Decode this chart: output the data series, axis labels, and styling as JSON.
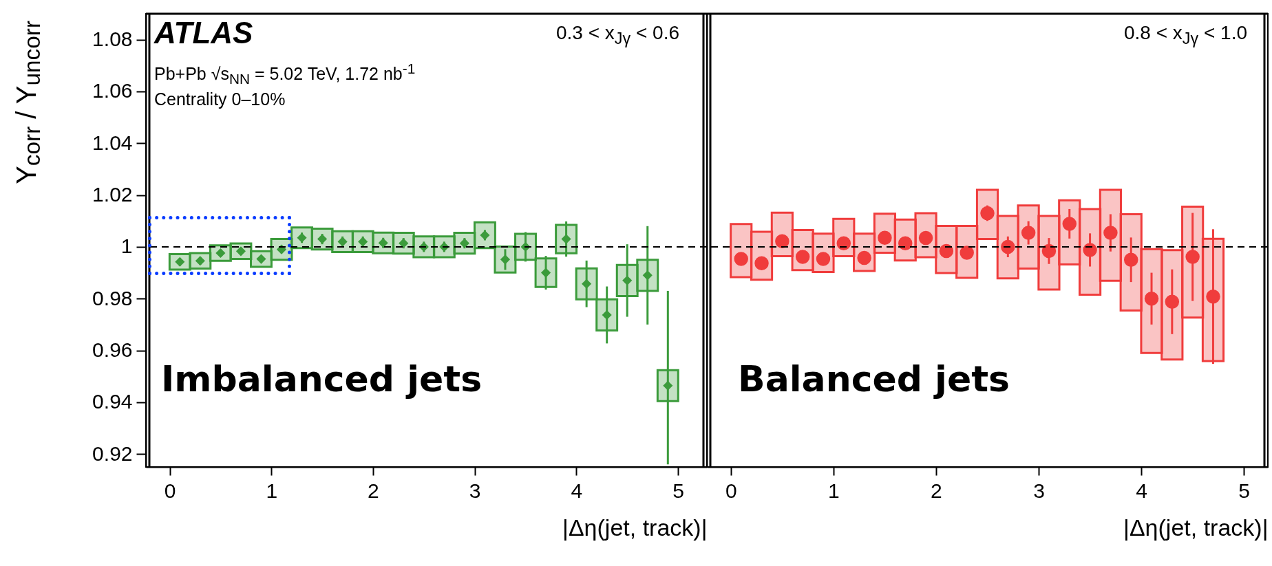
{
  "chart_data": [
    {
      "type": "scatter",
      "xlabel": "|Δη(jet, track)|",
      "ylabel": "Y$_{corr}$ / Y$_{uncorr}$",
      "annotations": [
        "ATLAS",
        "Pb+Pb √s$_{NN}$ = 5.02 TeV, 1.72 nb$^{-1}$",
        "Centrality 0–10%",
        "0.3 < x$_{Jγ}$ < 0.6",
        "Imbalanced jets"
      ],
      "x": [
        0.1,
        0.3,
        0.5,
        0.7,
        0.9,
        1.1,
        1.3,
        1.5,
        1.7,
        1.9,
        2.1,
        2.3,
        2.5,
        2.7,
        2.9,
        3.1,
        3.3,
        3.5,
        3.7,
        3.9,
        4.1,
        4.3,
        4.5,
        4.7,
        4.9
      ],
      "series": [
        {
          "type": "bar",
          "color": "#3b9b3b",
          "base": [
            0.9912,
            0.9916,
            0.9946,
            0.9953,
            0.9923,
            0.995,
            0.9995,
            0.999,
            0.998,
            0.998,
            0.9975,
            0.9974,
            0.996,
            0.996,
            0.9974,
            0.9995,
            0.9901,
            0.995,
            0.9845,
            0.9975,
            0.9797,
            0.9677,
            0.981,
            0.983,
            0.9404
          ],
          "values": [
            0.006,
            0.006,
            0.006,
            0.006,
            0.006,
            0.008,
            0.008,
            0.008,
            0.008,
            0.008,
            0.008,
            0.008,
            0.008,
            0.008,
            0.008,
            0.01,
            0.01,
            0.01,
            0.011,
            0.011,
            0.012,
            0.012,
            0.012,
            0.012,
            0.012
          ]
        },
        {
          "color": "#3b9b3b",
          "values": [
            0.9942,
            0.9946,
            0.9976,
            0.9983,
            0.9953,
            0.999,
            1.0035,
            1.003,
            1.002,
            1.002,
            1.0015,
            1.0014,
            1.0,
            1.0,
            1.0014,
            1.0045,
            0.9951,
            1.0,
            0.99,
            1.003,
            0.9857,
            0.9737,
            0.987,
            0.989,
            0.9464
          ],
          "errors": [
            0.0015,
            0.0015,
            0.0015,
            0.0015,
            0.0015,
            0.0015,
            0.002,
            0.002,
            0.002,
            0.002,
            0.002,
            0.002,
            0.002,
            0.002,
            0.002,
            0.002,
            0.004,
            0.0057,
            0.0065,
            0.0068,
            0.009,
            0.011,
            0.014,
            0.019,
            [
              0.916,
              0.983
            ]
          ]
        }
      ],
      "xlim": [
        -0.2,
        5.25
      ],
      "xticks": [
        0,
        1,
        2,
        3,
        4,
        5
      ],
      "ylim": [
        0.915,
        1.09
      ],
      "yticks": [
        0.92,
        0.94,
        0.96,
        0.98,
        1,
        1.02,
        1.04,
        1.06,
        1.08
      ],
      "ref_lines": [
        {
          "axis": "y",
          "value": 1,
          "line_style": "dashed",
          "color": "#000000"
        }
      ],
      "marker": "diamond",
      "grid": false
    },
    {
      "type": "scatter",
      "xlabel": "|Δη(jet, track)|",
      "annotations": [
        "0.8 < x$_{Jγ}$ < 1.0",
        "Balanced jets"
      ],
      "x": [
        0.1,
        0.3,
        0.5,
        0.7,
        0.9,
        1.1,
        1.3,
        1.5,
        1.7,
        1.9,
        2.1,
        2.3,
        2.5,
        2.7,
        2.9,
        3.1,
        3.3,
        3.5,
        3.7,
        3.9,
        4.1,
        4.3,
        4.5,
        4.7
      ],
      "series": [
        {
          "type": "bar",
          "color": "#f03c3c",
          "base": [
            0.9883,
            0.9873,
            0.9964,
            0.991,
            0.9903,
            0.9964,
            0.9907,
            0.9977,
            0.9947,
            0.996,
            0.9899,
            0.988,
            1.003,
            0.9878,
            0.9916,
            0.9835,
            0.9932,
            0.9815,
            0.9869,
            0.9754,
            0.959,
            0.9565,
            0.9727,
            0.9559
          ],
          "values": [
            0.0205,
            0.0185,
            0.0168,
            0.0155,
            0.0148,
            0.0144,
            0.0144,
            0.0151,
            0.0158,
            0.017,
            0.0182,
            0.0201,
            0.019,
            0.0241,
            0.0244,
            0.0284,
            0.0248,
            0.0331,
            0.0351,
            0.0372,
            0.0401,
            0.0422,
            0.0428,
            0.0472
          ]
        },
        {
          "color": "#f03c3c",
          "values": [
            0.9953,
            0.9937,
            1.0022,
            0.9961,
            0.9953,
            1.0014,
            0.9957,
            1.0035,
            1.0014,
            1.0034,
            0.9984,
            0.9977,
            1.013,
            1.0,
            1.0054,
            0.9984,
            1.0089,
            0.9988,
            1.0054,
            0.995,
            0.98,
            0.9788,
            0.9961,
            0.9808
          ],
          "errors": [
            null,
            null,
            null,
            null,
            null,
            null,
            null,
            null,
            null,
            null,
            null,
            null,
            0.003,
            0.004,
            0.0045,
            0.005,
            0.0057,
            0.0064,
            0.0072,
            0.0086,
            0.01,
            0.0125,
            0.017,
            0.026
          ]
        }
      ],
      "xlim": [
        -0.2,
        5.2
      ],
      "xticks": [
        0,
        1,
        2,
        3,
        4,
        5
      ],
      "ylim": [
        0.915,
        1.09
      ],
      "yticks": [
        0.92,
        0.94,
        0.96,
        0.98,
        1,
        1.02,
        1.04,
        1.06,
        1.08
      ],
      "tick_labels": "x",
      "ref_lines": [
        {
          "axis": "y",
          "value": 1,
          "line_style": "dashed",
          "color": "#000000"
        }
      ],
      "marker": "circle",
      "grid": false
    }
  ]
}
